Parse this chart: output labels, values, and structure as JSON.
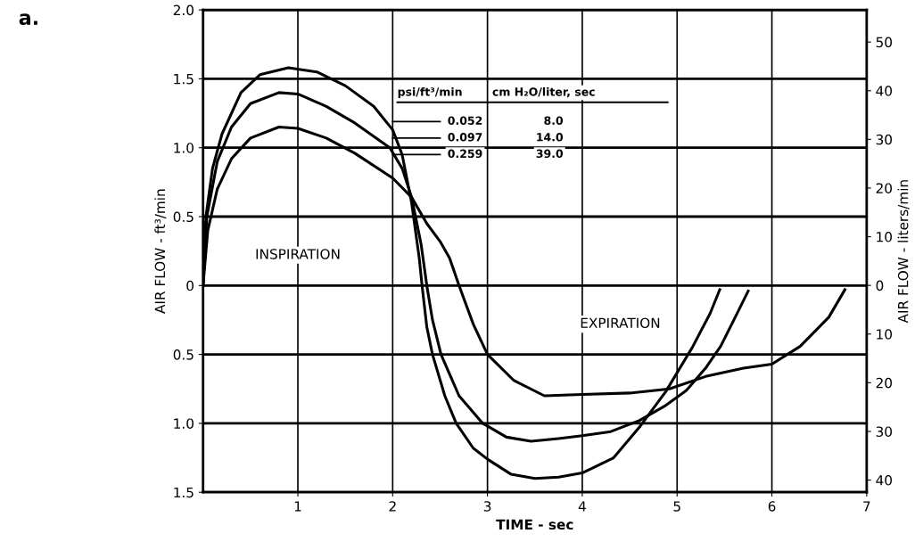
{
  "chart_data": {
    "type": "line",
    "xlabel": "TIME - sec",
    "ylabel": "AIR FLOW - ft³/min",
    "y2label": "AIR FLOW - liters/min",
    "xlim": [
      0,
      7
    ],
    "xticks": [
      1,
      2,
      3,
      4,
      5,
      6,
      7
    ],
    "ylim": [
      -1.5,
      2.0
    ],
    "yticks": [
      {
        "value": -1.5,
        "label": "1.5"
      },
      {
        "value": -1.0,
        "label": "1.0"
      },
      {
        "value": -0.5,
        "label": "0.5"
      },
      0,
      0.5,
      {
        "value": 1.0,
        "label": "1.0"
      },
      1.5,
      {
        "value": 2.0,
        "label": "2.0"
      }
    ],
    "y2lim": [
      -42.5,
      56.6
    ],
    "y2ticks": [
      {
        "value": -40,
        "label": "40"
      },
      {
        "value": -30,
        "label": "30"
      },
      {
        "value": -20,
        "label": "20"
      },
      {
        "value": -10,
        "label": "10"
      },
      0,
      10,
      20,
      30,
      40,
      50
    ],
    "grid": true,
    "legend": "top",
    "marker": "none",
    "line_style": "solid",
    "series": [
      {
        "name": "0.052",
        "color": "#000000",
        "x": [
          0,
          0.03,
          0.1,
          0.2,
          0.4,
          0.6,
          0.9,
          1.2,
          1.5,
          1.8,
          2.0,
          2.1,
          2.2,
          2.28,
          2.31,
          2.36,
          2.42,
          2.55,
          2.67,
          2.85,
          3.0,
          3.25,
          3.5,
          3.75,
          4.0,
          4.33,
          4.6,
          4.88,
          5.16,
          5.35,
          5.45
        ],
        "values": [
          0,
          0.5,
          0.85,
          1.1,
          1.4,
          1.53,
          1.58,
          1.55,
          1.45,
          1.3,
          1.13,
          0.95,
          0.6,
          0.2,
          0,
          -0.3,
          -0.5,
          -0.8,
          -1.0,
          -1.18,
          -1.26,
          -1.37,
          -1.4,
          -1.39,
          -1.36,
          -1.25,
          -1.03,
          -0.77,
          -0.45,
          -0.2,
          -0.03
        ]
      },
      {
        "name": "0.097",
        "color": "#000000",
        "x": [
          0,
          0.04,
          0.15,
          0.3,
          0.5,
          0.8,
          1.0,
          1.3,
          1.6,
          1.97,
          2.1,
          2.2,
          2.3,
          2.36,
          2.42,
          2.51,
          2.7,
          2.95,
          3.2,
          3.46,
          3.75,
          4.0,
          4.3,
          4.6,
          4.88,
          5.1,
          5.3,
          5.46,
          5.62,
          5.75
        ],
        "values": [
          0,
          0.5,
          0.9,
          1.15,
          1.32,
          1.4,
          1.39,
          1.3,
          1.18,
          1.0,
          0.85,
          0.64,
          0.3,
          0,
          -0.25,
          -0.5,
          -0.8,
          -1.0,
          -1.1,
          -1.13,
          -1.11,
          -1.09,
          -1.06,
          -0.98,
          -0.87,
          -0.76,
          -0.6,
          -0.44,
          -0.22,
          -0.04
        ]
      },
      {
        "name": "0.259",
        "color": "#000000",
        "x": [
          0,
          0.05,
          0.15,
          0.3,
          0.5,
          0.8,
          1.0,
          1.3,
          1.6,
          2.0,
          2.2,
          2.36,
          2.5,
          2.6,
          2.7,
          2.85,
          3.0,
          3.28,
          3.6,
          4.0,
          4.5,
          4.92,
          5.3,
          5.7,
          6.0,
          6.3,
          6.6,
          6.77
        ],
        "values": [
          0,
          0.4,
          0.7,
          0.92,
          1.07,
          1.15,
          1.14,
          1.07,
          0.96,
          0.78,
          0.64,
          0.45,
          0.32,
          0.2,
          0,
          -0.28,
          -0.5,
          -0.69,
          -0.8,
          -0.79,
          -0.78,
          -0.75,
          -0.66,
          -0.6,
          -0.57,
          -0.44,
          -0.23,
          -0.03
        ]
      }
    ],
    "annotations": [
      "a.",
      "psi/ft³/min",
      "cm H₂O/liter, sec",
      "8.0",
      "14.0",
      "39.0",
      "INSPIRATION",
      "EXPIRATION"
    ]
  }
}
